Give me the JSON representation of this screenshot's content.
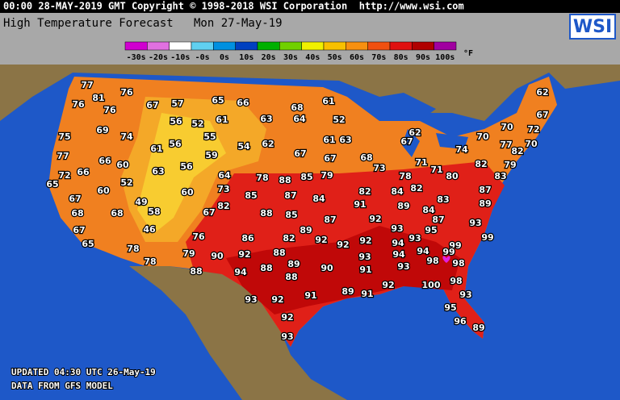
{
  "header": {
    "line": "00:00 28-MAY-2019 GMT Copyright © 1998-2018 WSI Corporation  http://www.wsi.com",
    "title": "High Temperature Forecast   Mon 27-May-19",
    "logo": "WSI"
  },
  "legend": {
    "labels": [
      "-30s",
      "-20s",
      "-10s",
      "-0s",
      "0s",
      "10s",
      "20s",
      "30s",
      "40s",
      "50s",
      "60s",
      "70s",
      "80s",
      "90s",
      "100s"
    ],
    "colors": [
      "#d000d0",
      "#e070e0",
      "#ffffff",
      "#60d0f0",
      "#0090e0",
      "#0040c0",
      "#00b000",
      "#70d000",
      "#f0f000",
      "#f8c000",
      "#f89010",
      "#f05010",
      "#e01010",
      "#b00000",
      "#a000a0"
    ],
    "unit": "°F"
  },
  "temperatures": [
    77,
    81,
    76,
    76,
    76,
    67,
    57,
    65,
    66,
    68,
    61,
    62,
    67,
    56,
    52,
    61,
    63,
    64,
    52,
    69,
    74,
    55,
    62,
    70,
    70,
    72,
    75,
    56,
    61,
    54,
    62,
    61,
    63,
    67,
    77,
    70,
    82,
    74,
    77,
    59,
    67,
    67,
    68,
    71,
    82,
    79,
    66,
    60,
    66,
    63,
    56,
    73,
    71,
    80,
    83,
    72,
    65,
    52,
    64,
    78,
    88,
    85,
    79,
    78,
    60,
    60,
    73,
    82,
    84,
    82,
    87,
    67,
    49,
    85,
    87,
    84,
    83,
    89,
    82,
    91,
    89,
    84,
    68,
    68,
    58,
    67,
    88,
    85,
    87,
    92,
    87,
    93,
    46,
    67,
    89,
    93,
    95,
    86,
    82,
    92,
    92,
    92,
    94,
    93,
    76,
    99,
    99,
    65,
    78,
    79,
    90,
    92,
    88,
    93,
    94,
    94,
    99,
    98,
    98,
    78,
    89,
    90,
    93,
    91,
    88,
    94,
    88,
    88,
    92,
    100,
    98,
    89,
    91,
    91,
    93,
    93,
    92,
    95,
    92,
    96,
    89,
    93
  ],
  "footer": {
    "updated": "UPDATED 04:30 UTC 26-May-19",
    "source": "DATA FROM GFS MODEL"
  }
}
